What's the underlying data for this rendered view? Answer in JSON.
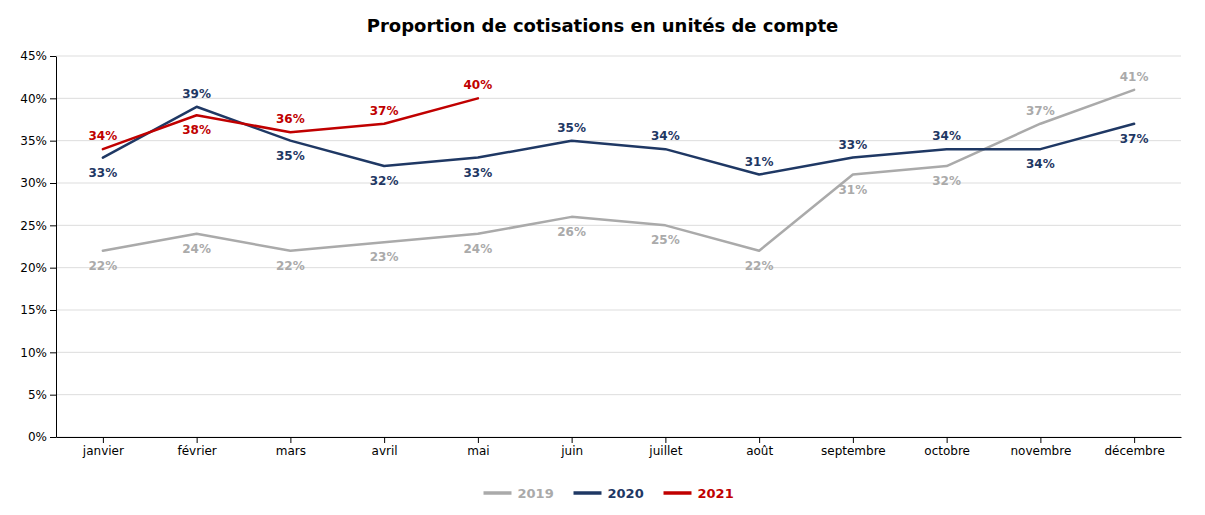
{
  "chart_data": {
    "type": "line",
    "title": "Proportion de cotisations en unités de compte",
    "categories": [
      "janvier",
      "février",
      "mars",
      "avril",
      "mai",
      "juin",
      "juillet",
      "août",
      "septembre",
      "octobre",
      "novembre",
      "décembre"
    ],
    "series": [
      {
        "name": "2019",
        "color": "#AAAAAA",
        "values": [
          22,
          24,
          22,
          23,
          24,
          26,
          25,
          22,
          31,
          32,
          37,
          41
        ],
        "value_labels": [
          "22%",
          "24%",
          "22%",
          "23%",
          "24%",
          "26%",
          "25%",
          "22%",
          "31%",
          "32%",
          "37%",
          "41%"
        ]
      },
      {
        "name": "2020",
        "color": "#1F3864",
        "values": [
          33,
          39,
          35,
          32,
          33,
          35,
          34,
          31,
          33,
          34,
          34,
          37
        ],
        "value_labels": [
          "33%",
          "39%",
          "35%",
          "32%",
          "33%",
          "35%",
          "34%",
          "31%",
          "33%",
          "34%",
          "34%",
          "37%"
        ]
      },
      {
        "name": "2021",
        "color": "#C00000",
        "values": [
          34,
          38,
          36,
          37,
          40,
          null,
          null,
          null,
          null,
          null,
          null,
          null
        ],
        "value_labels": [
          "34%",
          "38%",
          "36%",
          "37%",
          "40%",
          null,
          null,
          null,
          null,
          null,
          null,
          null
        ]
      }
    ],
    "ylim": [
      0,
      45
    ],
    "yticks": [
      {
        "value": 0,
        "label": "0%"
      },
      {
        "value": 5,
        "label": "5%"
      },
      {
        "value": 10,
        "label": "10%"
      },
      {
        "value": 15,
        "label": "15%"
      },
      {
        "value": 20,
        "label": "20%"
      },
      {
        "value": 25,
        "label": "25%"
      },
      {
        "value": 30,
        "label": "30%"
      },
      {
        "value": 35,
        "label": "35%"
      },
      {
        "value": 40,
        "label": "40%"
      },
      {
        "value": 45,
        "label": "45%"
      }
    ],
    "grid": true,
    "legend": "bottom",
    "data_labels": true
  }
}
